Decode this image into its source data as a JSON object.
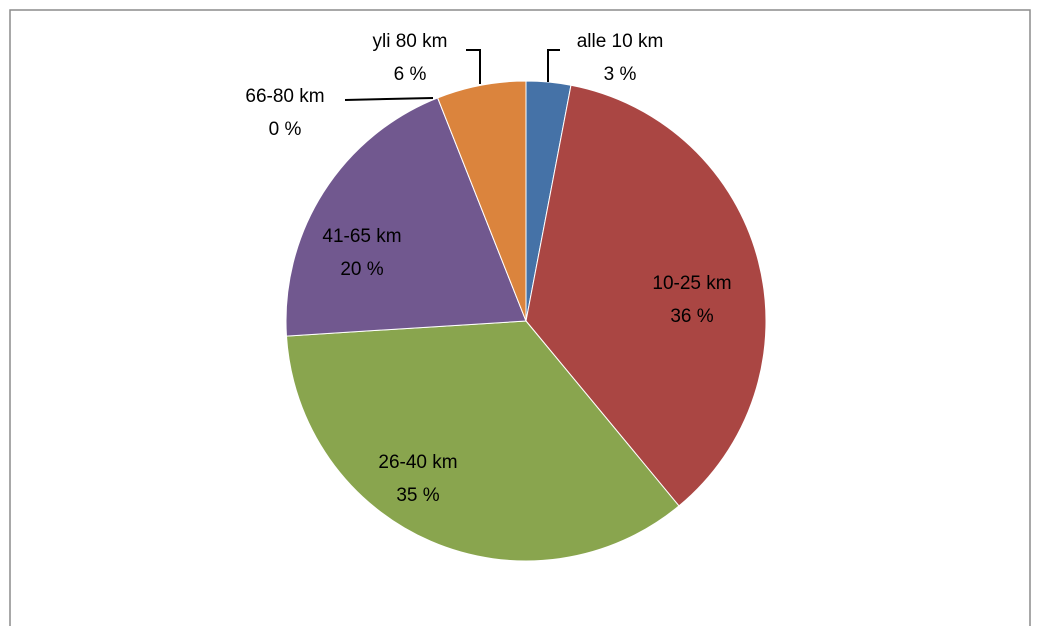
{
  "chart_data": {
    "type": "pie",
    "categories": [
      "alle 10 km",
      "10-25 km",
      "26-40 km",
      "41-65 km",
      "66-80 km",
      "yli 80 km"
    ],
    "values": [
      3,
      36,
      35,
      20,
      0,
      6
    ],
    "value_labels": [
      "3 %",
      "36 %",
      "35 %",
      "20 %",
      "0 %",
      "6 %"
    ],
    "colors": [
      "#4572a7",
      "#aa4643",
      "#89a54e",
      "#71588f",
      "#4198af",
      "#db843d"
    ]
  }
}
